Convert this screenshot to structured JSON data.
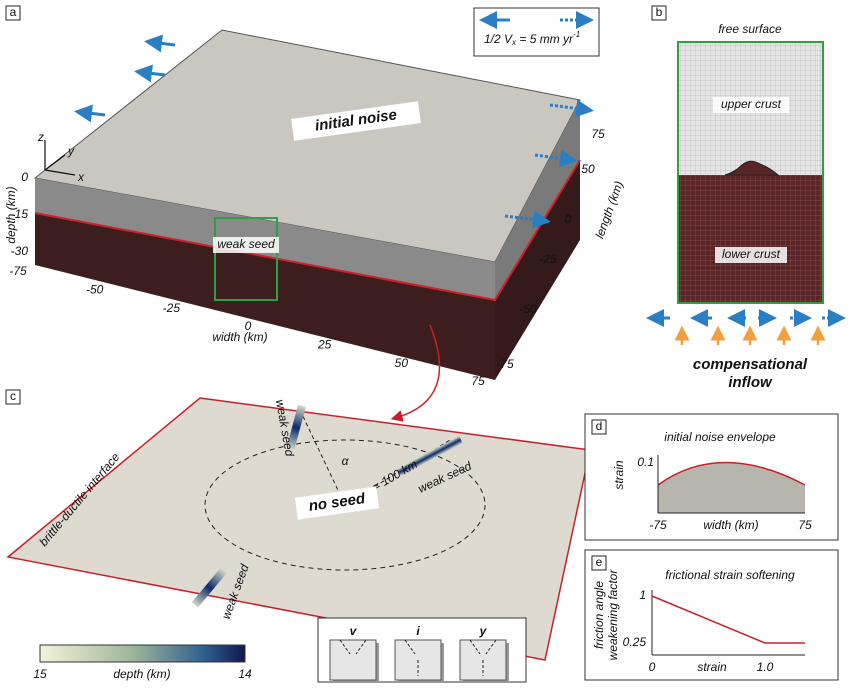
{
  "panel_a": {
    "label": "a",
    "legend": {
      "prefix": "1/2 V",
      "subscript": "x",
      "middle": " = 5 mm yr",
      "superscript": "-1"
    },
    "top_label": "initial noise",
    "seed_label": "weak seed",
    "axes_glyph": {
      "z": "z",
      "y": "y",
      "x": "x"
    },
    "depth_ticks": [
      "0",
      "-15",
      "-30"
    ],
    "depth_title": "depth (km)",
    "width_ticks": [
      "-75",
      "-50",
      "-25",
      "0",
      "25",
      "50",
      "75"
    ],
    "width_title": "width (km)",
    "length_ticks": [
      "75",
      "50",
      "0",
      "-25",
      "-50",
      "-75"
    ],
    "length_title": "length (km)"
  },
  "panel_b": {
    "label": "b",
    "top": "free surface",
    "upper": "upper crust",
    "lower": "lower crust",
    "bottom_line1": "compensational",
    "bottom_line2": "inflow"
  },
  "panel_c": {
    "label": "c",
    "interface": "brittle-ductile interface",
    "seeds": [
      "weak seed",
      "weak seed",
      "weak seed"
    ],
    "angle": "α",
    "radius": "r = 100 km",
    "center": "no seed",
    "modes": [
      "v",
      "i",
      "y"
    ],
    "colorbar": {
      "left": "15",
      "title": "depth (km)",
      "right": "14"
    }
  },
  "panel_d": {
    "label": "d",
    "title": "initial noise envelope",
    "ylabel": "strain",
    "ytick": "0.1",
    "xticks": [
      "-75",
      "75"
    ],
    "xlabel": "width (km)"
  },
  "panel_e": {
    "label": "e",
    "title": "frictional strain softening",
    "ylabel_line1": "friction angle",
    "ylabel_line2": "weakening factor",
    "yticks": [
      "1",
      "0.25"
    ],
    "xticks": [
      "0",
      "1.0"
    ],
    "xlabel": "strain"
  }
}
